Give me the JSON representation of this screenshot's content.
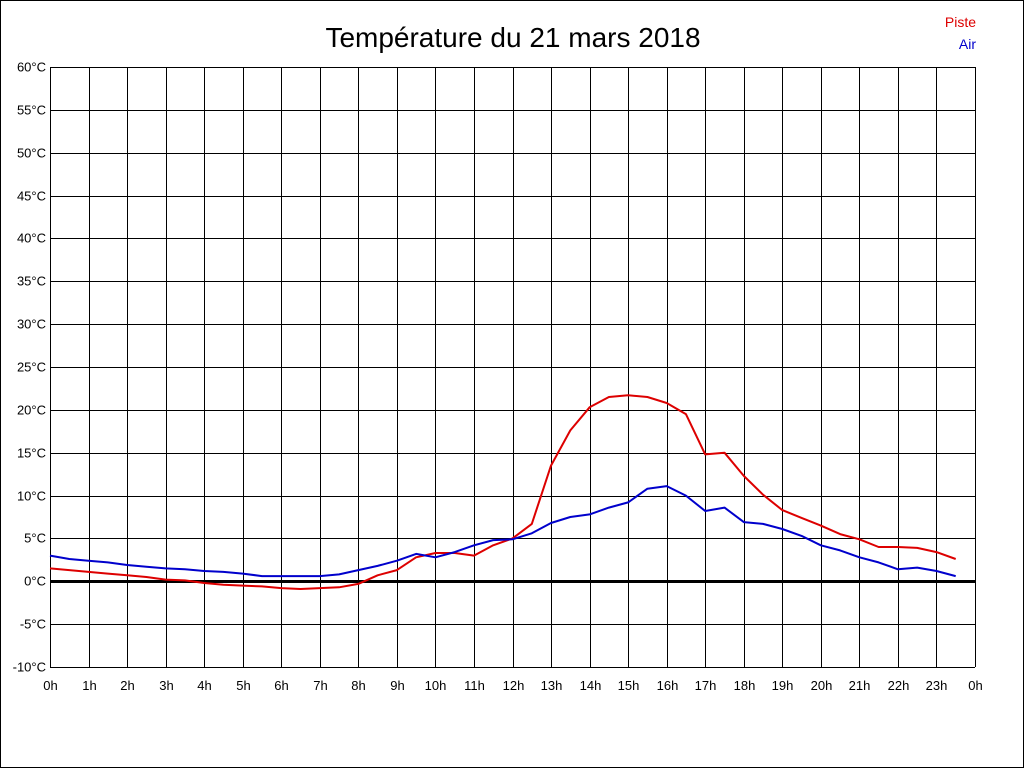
{
  "chart_data": {
    "type": "line",
    "title": "Température du 21 mars 2018",
    "xlabel": "",
    "ylabel": "",
    "xlim": [
      0,
      24
    ],
    "ylim": [
      -10,
      60
    ],
    "x_ticks": [
      0,
      1,
      2,
      3,
      4,
      5,
      6,
      7,
      8,
      9,
      10,
      11,
      12,
      13,
      14,
      15,
      16,
      17,
      18,
      19,
      20,
      21,
      22,
      23,
      24
    ],
    "x_tick_labels": [
      "0h",
      "1h",
      "2h",
      "3h",
      "4h",
      "5h",
      "6h",
      "7h",
      "8h",
      "9h",
      "10h",
      "11h",
      "12h",
      "13h",
      "14h",
      "15h",
      "16h",
      "17h",
      "18h",
      "19h",
      "20h",
      "21h",
      "22h",
      "23h",
      "0h"
    ],
    "y_ticks": [
      -10,
      -5,
      0,
      5,
      10,
      15,
      20,
      25,
      30,
      35,
      40,
      45,
      50,
      55,
      60
    ],
    "y_tick_labels": [
      "-10°C",
      "-5°C",
      "0°C",
      "5°C",
      "10°C",
      "15°C",
      "20°C",
      "25°C",
      "30°C",
      "35°C",
      "40°C",
      "45°C",
      "50°C",
      "55°C",
      "60°C"
    ],
    "grid": true,
    "legend_position": "top-right",
    "series": [
      {
        "name": "Piste",
        "color": "#dd0000",
        "x": [
          0,
          0.5,
          1,
          1.5,
          2,
          2.5,
          3,
          3.5,
          4,
          4.5,
          5,
          5.5,
          6,
          6.5,
          7,
          7.5,
          8,
          8.5,
          9,
          9.5,
          10,
          10.5,
          11,
          11.5,
          12,
          12.5,
          13,
          13.5,
          14,
          14.5,
          15,
          15.5,
          16,
          16.5,
          17,
          17.5,
          18,
          18.5,
          19,
          19.5,
          20,
          20.5,
          21,
          21.5,
          22,
          22.5,
          23,
          23.5
        ],
        "values": [
          1.5,
          1.3,
          1.1,
          0.9,
          0.7,
          0.5,
          0.2,
          0.1,
          -0.2,
          -0.4,
          -0.5,
          -0.6,
          -0.8,
          -0.9,
          -0.8,
          -0.7,
          -0.3,
          0.7,
          1.3,
          2.8,
          3.3,
          3.3,
          3.0,
          4.2,
          5.0,
          6.7,
          13.5,
          17.6,
          20.3,
          21.5,
          21.7,
          21.5,
          20.8,
          19.5,
          14.8,
          15.0,
          12.3,
          10.1,
          8.3,
          7.4,
          6.5,
          5.5,
          4.9,
          4.0,
          4.0,
          3.9,
          3.4,
          2.6
        ]
      },
      {
        "name": "Air",
        "color": "#0000cc",
        "x": [
          0,
          0.5,
          1,
          1.5,
          2,
          2.5,
          3,
          3.5,
          4,
          4.5,
          5,
          5.5,
          6,
          6.5,
          7,
          7.5,
          8,
          8.5,
          9,
          9.5,
          10,
          10.5,
          11,
          11.5,
          12,
          12.5,
          13,
          13.5,
          14,
          14.5,
          15,
          15.5,
          16,
          16.5,
          17,
          17.5,
          18,
          18.5,
          19,
          19.5,
          20,
          20.5,
          21,
          21.5,
          22,
          22.5,
          23,
          23.5
        ],
        "values": [
          3.0,
          2.6,
          2.4,
          2.2,
          1.9,
          1.7,
          1.5,
          1.4,
          1.2,
          1.1,
          0.9,
          0.6,
          0.6,
          0.6,
          0.6,
          0.8,
          1.3,
          1.8,
          2.4,
          3.2,
          2.8,
          3.4,
          4.2,
          4.8,
          4.9,
          5.6,
          6.8,
          7.5,
          7.8,
          8.6,
          9.2,
          10.8,
          11.1,
          10.0,
          8.2,
          8.6,
          6.9,
          6.7,
          6.1,
          5.3,
          4.2,
          3.6,
          2.8,
          2.2,
          1.4,
          1.6,
          1.2,
          0.6
        ]
      }
    ]
  }
}
